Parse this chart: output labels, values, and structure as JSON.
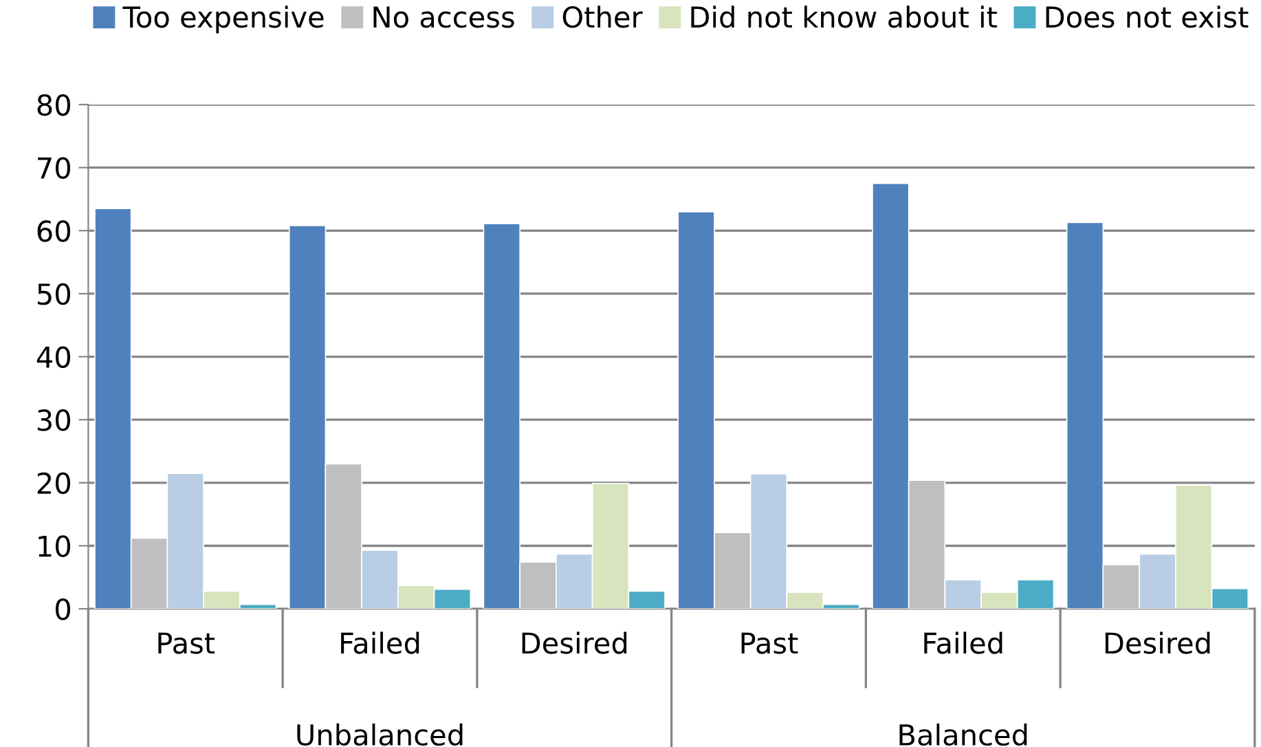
{
  "chart_data": {
    "type": "bar",
    "categories": [
      "Past",
      "Failed",
      "Desired",
      "Past",
      "Failed",
      "Desired"
    ],
    "annotations": [
      "Unbalanced",
      "Balanced"
    ],
    "series": [
      {
        "name": "Too expensive",
        "color": "#4f81bd",
        "values": [
          63.5,
          60.8,
          61.1,
          63.0,
          67.5,
          61.3
        ]
      },
      {
        "name": "No access",
        "color": "#bfbfbf",
        "values": [
          11.2,
          23.0,
          7.4,
          12.1,
          20.4,
          7.0
        ]
      },
      {
        "name": "Other",
        "color": "#b9cde5",
        "values": [
          21.5,
          9.3,
          8.7,
          21.4,
          4.6,
          8.7
        ]
      },
      {
        "name": "Did not know about it",
        "color": "#d7e4bd",
        "values": [
          2.8,
          3.7,
          19.9,
          2.6,
          2.6,
          19.6
        ]
      },
      {
        "name": "Does not exist",
        "color": "#4bacc6",
        "values": [
          0.7,
          3.1,
          2.8,
          0.7,
          4.6,
          3.2
        ]
      }
    ],
    "ylim": [
      0,
      80
    ],
    "yticks": [
      0,
      10,
      20,
      30,
      40,
      50,
      60,
      70,
      80
    ],
    "grid": "y",
    "legend": "top"
  }
}
